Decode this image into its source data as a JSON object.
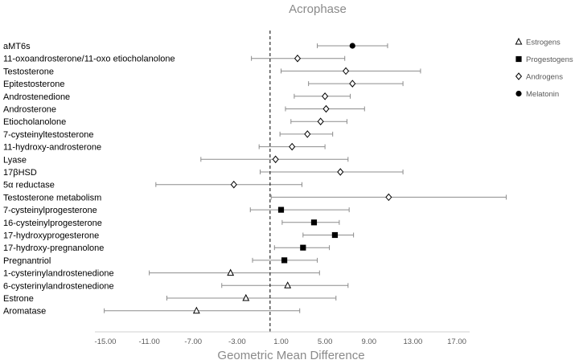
{
  "chart_data": {
    "type": "forest",
    "title": "Acrophase",
    "xlabel": "Geometric Mean Difference",
    "ylabel": "",
    "xlim": [
      -15,
      19
    ],
    "xticks": [
      -15,
      -11,
      -7,
      -3,
      1,
      5,
      9,
      13,
      17
    ],
    "xtick_labels": [
      "-15.00",
      "-11.00",
      "-7.00",
      "-3.00",
      "1.00",
      "5.00",
      "9.00",
      "13.00",
      "17.00"
    ],
    "reference_line": 0,
    "legend": [
      {
        "name": "Estrogens",
        "marker": "open-triangle"
      },
      {
        "name": "Progestogens",
        "marker": "filled-square"
      },
      {
        "name": "Androgens",
        "marker": "open-diamond"
      },
      {
        "name": "Melatonin",
        "marker": "filled-circle"
      }
    ],
    "rows": [
      {
        "label": "aMT6s",
        "group": "Melatonin",
        "estimate": 7.5,
        "lower": 4.3,
        "upper": 10.7
      },
      {
        "label": "11-oxoandrosterone/11-oxo etiocholanolone",
        "group": "Androgens",
        "estimate": 2.5,
        "lower": -1.7,
        "upper": 6.8
      },
      {
        "label": "Testosterone",
        "group": "Androgens",
        "estimate": 6.9,
        "lower": 1.0,
        "upper": 13.7
      },
      {
        "label": "Epitestosterone",
        "group": "Androgens",
        "estimate": 7.5,
        "lower": 3.5,
        "upper": 12.1
      },
      {
        "label": "Androstenedione",
        "group": "Androgens",
        "estimate": 5.0,
        "lower": 2.2,
        "upper": 7.3
      },
      {
        "label": "Androsterone",
        "group": "Androgens",
        "estimate": 5.1,
        "lower": 1.4,
        "upper": 8.6
      },
      {
        "label": "Etiocholanolone",
        "group": "Androgens",
        "estimate": 4.6,
        "lower": 1.9,
        "upper": 7.0
      },
      {
        "label": "7-cysteinyltestosterone",
        "group": "Androgens",
        "estimate": 3.4,
        "lower": 0.9,
        "upper": 5.7
      },
      {
        "label": "11-hydroxy-androsterone",
        "group": "Androgens",
        "estimate": 2.0,
        "lower": -1.0,
        "upper": 5.0
      },
      {
        "label": "Lyase",
        "group": "Androgens",
        "estimate": 0.5,
        "lower": -6.3,
        "upper": 7.1
      },
      {
        "label": "17βHSD",
        "group": "Androgens",
        "estimate": 6.4,
        "lower": -0.9,
        "upper": 12.1
      },
      {
        "label": "5α reductase",
        "group": "Androgens",
        "estimate": -3.3,
        "lower": -10.4,
        "upper": 2.9
      },
      {
        "label": "Testosterone metabolism",
        "group": "Androgens",
        "estimate": 10.8,
        "lower": 0.1,
        "upper": 21.5
      },
      {
        "label": "7-cysteinylprogesterone",
        "group": "Progestogens",
        "estimate": 1.0,
        "lower": -1.8,
        "upper": 7.2
      },
      {
        "label": "16-cysteinylprogesterone",
        "group": "Progestogens",
        "estimate": 4.0,
        "lower": 1.1,
        "upper": 6.3
      },
      {
        "label": "17-hydroxyprogesterone",
        "group": "Progestogens",
        "estimate": 5.9,
        "lower": 3.0,
        "upper": 7.6
      },
      {
        "label": "17-hydroxy-pregnanolone",
        "group": "Progestogens",
        "estimate": 3.0,
        "lower": 0.4,
        "upper": 5.4
      },
      {
        "label": "Pregnantriol",
        "group": "Progestogens",
        "estimate": 1.3,
        "lower": -1.6,
        "upper": 4.3
      },
      {
        "label": "1-cysterinylandrostenedione",
        "group": "Estrogens",
        "estimate": -3.6,
        "lower": -11.0,
        "upper": 4.5
      },
      {
        "label": "6-cysterinylandrostenedione",
        "group": "Estrogens",
        "estimate": 1.6,
        "lower": -4.4,
        "upper": 7.1
      },
      {
        "label": "Estrone",
        "group": "Estrogens",
        "estimate": -2.2,
        "lower": -9.4,
        "upper": 6.0
      },
      {
        "label": "Aromatase",
        "group": "Estrogens",
        "estimate": -6.7,
        "lower": -15.1,
        "upper": 2.7
      }
    ]
  }
}
